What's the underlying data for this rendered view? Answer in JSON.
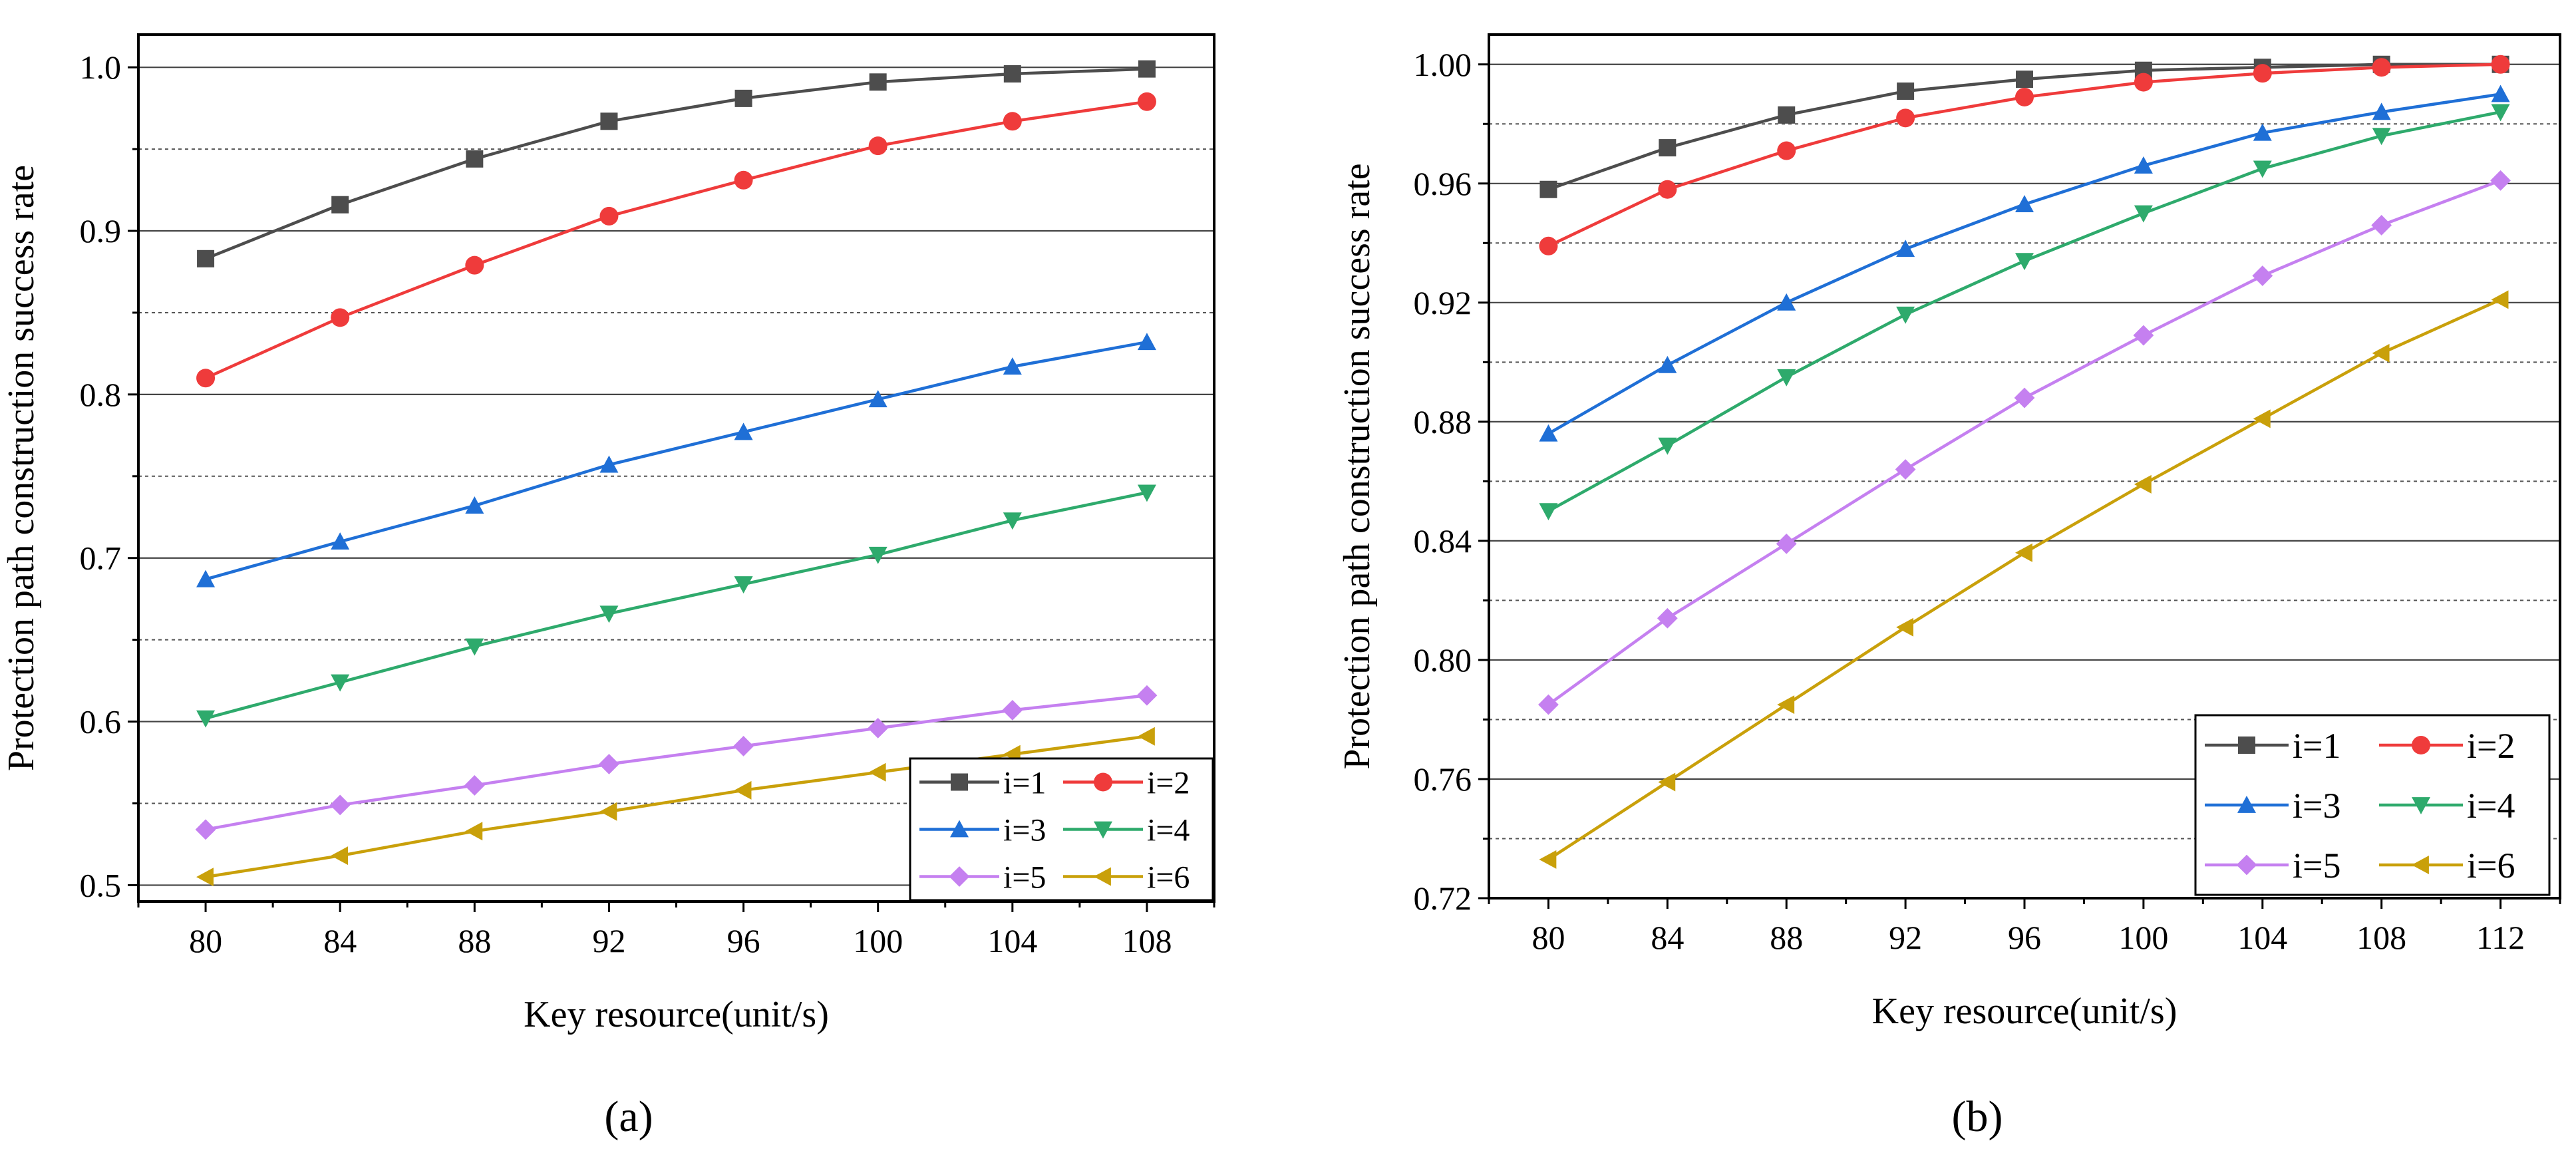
{
  "figure": {
    "panel_labels": [
      "(a)",
      "(b)"
    ]
  },
  "chart_data": [
    {
      "type": "line",
      "panel": "(a)",
      "title": "",
      "xlabel": "Key resource(unit/s)",
      "ylabel": "Protection path construction success rate",
      "x": [
        80,
        84,
        88,
        92,
        96,
        100,
        104,
        108
      ],
      "xticks": [
        "80",
        "84",
        "88",
        "92",
        "96",
        "100",
        "104",
        "108"
      ],
      "xlim": [
        78,
        110
      ],
      "ylim": [
        0.49,
        1.02
      ],
      "yticks": [
        "0.5",
        "0.6",
        "0.7",
        "0.8",
        "0.9",
        "1.0"
      ],
      "ytick_values": [
        0.5,
        0.6,
        0.7,
        0.8,
        0.9,
        1.0
      ],
      "grid_major": [
        0.5,
        0.6,
        0.7,
        0.8,
        0.9,
        1.0
      ],
      "grid_minor": [
        0.55,
        0.65,
        0.75,
        0.85,
        0.95
      ],
      "legend_position": "bottom-right",
      "series": [
        {
          "name": "i=1",
          "color": "#4d4d4d",
          "marker": "square",
          "values": [
            0.883,
            0.916,
            0.944,
            0.967,
            0.981,
            0.991,
            0.996,
            0.999
          ]
        },
        {
          "name": "i=2",
          "color": "#ef3b3b",
          "marker": "circle",
          "values": [
            0.81,
            0.847,
            0.879,
            0.909,
            0.931,
            0.952,
            0.967,
            0.979
          ]
        },
        {
          "name": "i=3",
          "color": "#1f6fd6",
          "marker": "triangle-up",
          "values": [
            0.687,
            0.71,
            0.732,
            0.757,
            0.777,
            0.797,
            0.817,
            0.832
          ]
        },
        {
          "name": "i=4",
          "color": "#2eaa6c",
          "marker": "triangle-down",
          "values": [
            0.602,
            0.624,
            0.646,
            0.666,
            0.684,
            0.702,
            0.723,
            0.74
          ]
        },
        {
          "name": "i=5",
          "color": "#c580f0",
          "marker": "diamond",
          "values": [
            0.534,
            0.549,
            0.561,
            0.574,
            0.585,
            0.596,
            0.607,
            0.616
          ]
        },
        {
          "name": "i=6",
          "color": "#c9a00a",
          "marker": "triangle-left",
          "values": [
            0.505,
            0.518,
            0.533,
            0.545,
            0.558,
            0.569,
            0.58,
            0.591
          ]
        }
      ]
    },
    {
      "type": "line",
      "panel": "(b)",
      "title": "",
      "xlabel": "Key resource(unit/s)",
      "ylabel": "Protection path construction success rate",
      "x": [
        80,
        84,
        88,
        92,
        96,
        100,
        104,
        108,
        112
      ],
      "xticks": [
        "80",
        "84",
        "88",
        "92",
        "96",
        "100",
        "104",
        "108",
        "112"
      ],
      "xlim": [
        78,
        114
      ],
      "ylim": [
        0.72,
        1.01
      ],
      "yticks": [
        "0.72",
        "0.76",
        "0.80",
        "0.84",
        "0.88",
        "0.92",
        "0.96",
        "1.00"
      ],
      "ytick_values": [
        0.72,
        0.76,
        0.8,
        0.84,
        0.88,
        0.92,
        0.96,
        1.0
      ],
      "grid_major": [
        0.76,
        0.8,
        0.84,
        0.88,
        0.92,
        0.96,
        1.0
      ],
      "grid_minor": [
        0.74,
        0.78,
        0.82,
        0.86,
        0.9,
        0.94,
        0.98
      ],
      "legend_position": "bottom-right",
      "series": [
        {
          "name": "i=1",
          "color": "#4d4d4d",
          "marker": "square",
          "values": [
            0.958,
            0.972,
            0.983,
            0.991,
            0.995,
            0.998,
            0.999,
            1.0,
            1.0
          ]
        },
        {
          "name": "i=2",
          "color": "#ef3b3b",
          "marker": "circle",
          "values": [
            0.939,
            0.958,
            0.971,
            0.982,
            0.989,
            0.994,
            0.997,
            0.999,
            1.0
          ]
        },
        {
          "name": "i=3",
          "color": "#1f6fd6",
          "marker": "triangle-up",
          "values": [
            0.876,
            0.899,
            0.92,
            0.938,
            0.953,
            0.966,
            0.977,
            0.984,
            0.99
          ]
        },
        {
          "name": "i=4",
          "color": "#2eaa6c",
          "marker": "triangle-down",
          "values": [
            0.85,
            0.872,
            0.895,
            0.916,
            0.934,
            0.95,
            0.965,
            0.976,
            0.984
          ]
        },
        {
          "name": "i=5",
          "color": "#c580f0",
          "marker": "diamond",
          "values": [
            0.785,
            0.814,
            0.839,
            0.864,
            0.888,
            0.909,
            0.929,
            0.946,
            0.961
          ]
        },
        {
          "name": "i=6",
          "color": "#c9a00a",
          "marker": "triangle-left",
          "values": [
            0.733,
            0.759,
            0.785,
            0.811,
            0.836,
            0.859,
            0.881,
            0.903,
            0.921
          ]
        }
      ]
    }
  ]
}
